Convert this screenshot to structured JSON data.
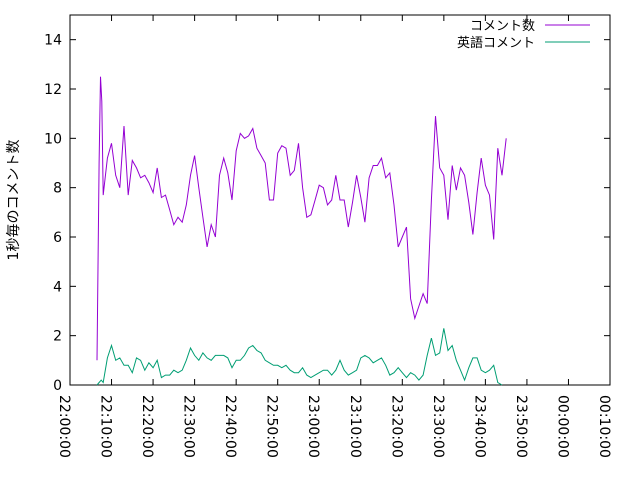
{
  "chart_data": {
    "type": "line",
    "ylabel": "1秒毎のコメント数",
    "xlabel": "",
    "title": "",
    "ylim": [
      0,
      15
    ],
    "xlim": [
      "22:00:00",
      "00:10:00"
    ],
    "x_ticks": [
      "22:00:00",
      "22:10:00",
      "22:20:00",
      "22:30:00",
      "22:40:00",
      "22:50:00",
      "23:00:00",
      "23:10:00",
      "23:20:00",
      "23:30:00",
      "23:40:00",
      "23:50:00",
      "00:00:00",
      "00:10:00"
    ],
    "y_ticks": [
      0,
      2,
      4,
      6,
      8,
      10,
      12,
      14
    ],
    "legend_position": "top-right",
    "grid": false,
    "series": [
      {
        "name": "コメント数",
        "color": "#9400d3",
        "points": [
          [
            "22:06:30",
            1.0
          ],
          [
            "22:07:00",
            9.0
          ],
          [
            "22:07:20",
            12.5
          ],
          [
            "22:07:40",
            11.5
          ],
          [
            "22:08:00",
            7.7
          ],
          [
            "22:09:00",
            9.2
          ],
          [
            "22:10:00",
            9.8
          ],
          [
            "22:11:00",
            8.5
          ],
          [
            "22:12:00",
            8.0
          ],
          [
            "22:13:00",
            10.5
          ],
          [
            "22:14:00",
            7.7
          ],
          [
            "22:15:00",
            9.1
          ],
          [
            "22:16:00",
            8.8
          ],
          [
            "22:17:00",
            8.4
          ],
          [
            "22:18:00",
            8.5
          ],
          [
            "22:19:00",
            8.2
          ],
          [
            "22:20:00",
            7.8
          ],
          [
            "22:21:00",
            8.8
          ],
          [
            "22:22:00",
            7.6
          ],
          [
            "22:23:00",
            7.7
          ],
          [
            "22:24:00",
            7.1
          ],
          [
            "22:25:00",
            6.5
          ],
          [
            "22:26:00",
            6.8
          ],
          [
            "22:27:00",
            6.6
          ],
          [
            "22:28:00",
            7.3
          ],
          [
            "22:29:00",
            8.5
          ],
          [
            "22:30:00",
            9.3
          ],
          [
            "22:31:00",
            8.0
          ],
          [
            "22:32:00",
            6.8
          ],
          [
            "22:33:00",
            5.6
          ],
          [
            "22:34:00",
            6.5
          ],
          [
            "22:35:00",
            6.0
          ],
          [
            "22:36:00",
            8.5
          ],
          [
            "22:37:00",
            9.2
          ],
          [
            "22:38:00",
            8.6
          ],
          [
            "22:39:00",
            7.5
          ],
          [
            "22:40:00",
            9.5
          ],
          [
            "22:41:00",
            10.2
          ],
          [
            "22:42:00",
            10.0
          ],
          [
            "22:43:00",
            10.1
          ],
          [
            "22:44:00",
            10.4
          ],
          [
            "22:45:00",
            9.6
          ],
          [
            "22:46:00",
            9.3
          ],
          [
            "22:47:00",
            9.0
          ],
          [
            "22:48:00",
            7.5
          ],
          [
            "22:49:00",
            7.5
          ],
          [
            "22:50:00",
            9.4
          ],
          [
            "22:51:00",
            9.7
          ],
          [
            "22:52:00",
            9.6
          ],
          [
            "22:53:00",
            8.5
          ],
          [
            "22:54:00",
            8.7
          ],
          [
            "22:55:00",
            9.8
          ],
          [
            "22:56:00",
            8.0
          ],
          [
            "22:57:00",
            6.8
          ],
          [
            "22:58:00",
            6.9
          ],
          [
            "22:59:00",
            7.5
          ],
          [
            "23:00:00",
            8.1
          ],
          [
            "23:01:00",
            8.0
          ],
          [
            "23:02:00",
            7.3
          ],
          [
            "23:03:00",
            7.5
          ],
          [
            "23:04:00",
            8.5
          ],
          [
            "23:05:00",
            7.5
          ],
          [
            "23:06:00",
            7.5
          ],
          [
            "23:07:00",
            6.4
          ],
          [
            "23:08:00",
            7.4
          ],
          [
            "23:09:00",
            8.5
          ],
          [
            "23:10:00",
            7.6
          ],
          [
            "23:11:00",
            6.6
          ],
          [
            "23:12:00",
            8.4
          ],
          [
            "23:13:00",
            8.9
          ],
          [
            "23:14:00",
            8.9
          ],
          [
            "23:15:00",
            9.2
          ],
          [
            "23:16:00",
            8.4
          ],
          [
            "23:17:00",
            8.6
          ],
          [
            "23:18:00",
            7.3
          ],
          [
            "23:19:00",
            5.6
          ],
          [
            "23:20:00",
            6.0
          ],
          [
            "23:21:00",
            6.4
          ],
          [
            "23:22:00",
            3.5
          ],
          [
            "23:23:00",
            2.7
          ],
          [
            "23:24:00",
            3.2
          ],
          [
            "23:25:00",
            3.7
          ],
          [
            "23:26:00",
            3.3
          ],
          [
            "23:27:00",
            7.5
          ],
          [
            "23:28:00",
            10.9
          ],
          [
            "23:29:00",
            8.8
          ],
          [
            "23:30:00",
            8.5
          ],
          [
            "23:31:00",
            6.7
          ],
          [
            "23:32:00",
            8.9
          ],
          [
            "23:33:00",
            7.9
          ],
          [
            "23:34:00",
            8.8
          ],
          [
            "23:35:00",
            8.5
          ],
          [
            "23:36:00",
            7.4
          ],
          [
            "23:37:00",
            6.1
          ],
          [
            "23:38:00",
            7.8
          ],
          [
            "23:39:00",
            9.2
          ],
          [
            "23:40:00",
            8.1
          ],
          [
            "23:41:00",
            7.7
          ],
          [
            "23:42:00",
            5.9
          ],
          [
            "23:43:00",
            9.6
          ],
          [
            "23:44:00",
            8.5
          ],
          [
            "23:45:00",
            10.0
          ]
        ]
      },
      {
        "name": "英語コメント",
        "color": "#009e73",
        "points": [
          [
            "22:06:30",
            0.0
          ],
          [
            "22:07:00",
            0.1
          ],
          [
            "22:07:30",
            0.2
          ],
          [
            "22:08:00",
            0.1
          ],
          [
            "22:09:00",
            1.1
          ],
          [
            "22:10:00",
            1.6
          ],
          [
            "22:11:00",
            1.0
          ],
          [
            "22:12:00",
            1.1
          ],
          [
            "22:13:00",
            0.8
          ],
          [
            "22:14:00",
            0.8
          ],
          [
            "22:15:00",
            0.5
          ],
          [
            "22:16:00",
            1.1
          ],
          [
            "22:17:00",
            1.0
          ],
          [
            "22:18:00",
            0.6
          ],
          [
            "22:19:00",
            0.9
          ],
          [
            "22:20:00",
            0.7
          ],
          [
            "22:21:00",
            1.0
          ],
          [
            "22:22:00",
            0.3
          ],
          [
            "22:23:00",
            0.4
          ],
          [
            "22:24:00",
            0.4
          ],
          [
            "22:25:00",
            0.6
          ],
          [
            "22:26:00",
            0.5
          ],
          [
            "22:27:00",
            0.6
          ],
          [
            "22:28:00",
            1.0
          ],
          [
            "22:29:00",
            1.5
          ],
          [
            "22:30:00",
            1.2
          ],
          [
            "22:31:00",
            1.0
          ],
          [
            "22:32:00",
            1.3
          ],
          [
            "22:33:00",
            1.1
          ],
          [
            "22:34:00",
            1.0
          ],
          [
            "22:35:00",
            1.2
          ],
          [
            "22:36:00",
            1.2
          ],
          [
            "22:37:00",
            1.2
          ],
          [
            "22:38:00",
            1.1
          ],
          [
            "22:39:00",
            0.7
          ],
          [
            "22:40:00",
            1.0
          ],
          [
            "22:41:00",
            1.0
          ],
          [
            "22:42:00",
            1.2
          ],
          [
            "22:43:00",
            1.5
          ],
          [
            "22:44:00",
            1.6
          ],
          [
            "22:45:00",
            1.4
          ],
          [
            "22:46:00",
            1.3
          ],
          [
            "22:47:00",
            1.0
          ],
          [
            "22:48:00",
            0.9
          ],
          [
            "22:49:00",
            0.8
          ],
          [
            "22:50:00",
            0.8
          ],
          [
            "22:51:00",
            0.7
          ],
          [
            "22:52:00",
            0.8
          ],
          [
            "22:53:00",
            0.6
          ],
          [
            "22:54:00",
            0.5
          ],
          [
            "22:55:00",
            0.5
          ],
          [
            "22:56:00",
            0.7
          ],
          [
            "22:57:00",
            0.4
          ],
          [
            "22:58:00",
            0.3
          ],
          [
            "22:59:00",
            0.4
          ],
          [
            "23:00:00",
            0.5
          ],
          [
            "23:01:00",
            0.6
          ],
          [
            "23:02:00",
            0.6
          ],
          [
            "23:03:00",
            0.4
          ],
          [
            "23:04:00",
            0.6
          ],
          [
            "23:05:00",
            1.0
          ],
          [
            "23:06:00",
            0.6
          ],
          [
            "23:07:00",
            0.4
          ],
          [
            "23:08:00",
            0.5
          ],
          [
            "23:09:00",
            0.6
          ],
          [
            "23:10:00",
            1.1
          ],
          [
            "23:11:00",
            1.2
          ],
          [
            "23:12:00",
            1.1
          ],
          [
            "23:13:00",
            0.9
          ],
          [
            "23:14:00",
            1.0
          ],
          [
            "23:15:00",
            1.1
          ],
          [
            "23:16:00",
            0.8
          ],
          [
            "23:17:00",
            0.4
          ],
          [
            "23:18:00",
            0.5
          ],
          [
            "23:19:00",
            0.7
          ],
          [
            "23:20:00",
            0.5
          ],
          [
            "23:21:00",
            0.3
          ],
          [
            "23:22:00",
            0.5
          ],
          [
            "23:23:00",
            0.4
          ],
          [
            "23:24:00",
            0.2
          ],
          [
            "23:25:00",
            0.4
          ],
          [
            "23:26:00",
            1.2
          ],
          [
            "23:27:00",
            1.9
          ],
          [
            "23:28:00",
            1.2
          ],
          [
            "23:29:00",
            1.3
          ],
          [
            "23:30:00",
            2.3
          ],
          [
            "23:31:00",
            1.4
          ],
          [
            "23:32:00",
            1.6
          ],
          [
            "23:33:00",
            1.0
          ],
          [
            "23:34:00",
            0.6
          ],
          [
            "23:35:00",
            0.2
          ],
          [
            "23:36:00",
            0.7
          ],
          [
            "23:37:00",
            1.1
          ],
          [
            "23:38:00",
            1.1
          ],
          [
            "23:39:00",
            0.6
          ],
          [
            "23:40:00",
            0.5
          ],
          [
            "23:41:00",
            0.6
          ],
          [
            "23:42:00",
            0.8
          ],
          [
            "23:43:00",
            0.1
          ],
          [
            "23:44:00",
            0.0
          ]
        ]
      }
    ]
  }
}
